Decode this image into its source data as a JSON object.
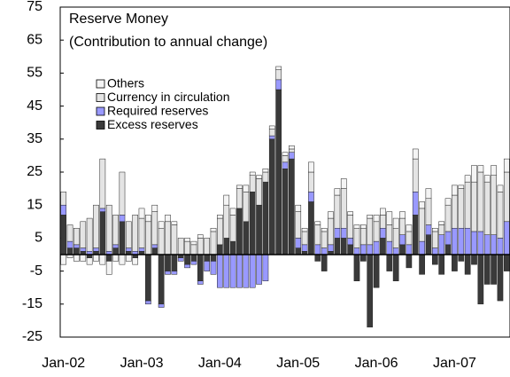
{
  "chart_data": {
    "type": "bar",
    "stacked": true,
    "title": "Reserve Money",
    "subtitle": "(Contribution to annual change)",
    "categories": [
      "Jan-02",
      null,
      null,
      null,
      null,
      null,
      null,
      null,
      null,
      null,
      null,
      null,
      "Jan-03",
      null,
      null,
      null,
      null,
      null,
      null,
      null,
      null,
      null,
      null,
      null,
      "Jan-04",
      null,
      null,
      null,
      null,
      null,
      null,
      null,
      null,
      null,
      null,
      null,
      "Jan-05",
      null,
      null,
      null,
      null,
      null,
      null,
      null,
      null,
      null,
      null,
      null,
      "Jan-06",
      null,
      null,
      null,
      null,
      null,
      null,
      null,
      null,
      null,
      null,
      null,
      "Jan-07",
      null,
      null,
      null,
      null,
      null,
      null,
      null,
      null
    ],
    "series": [
      {
        "name": "Excess reserves",
        "color": "#3a3a3a",
        "values": [
          12,
          2,
          2,
          1,
          -1,
          1,
          13,
          -2,
          2,
          10,
          1,
          -1,
          1,
          -14,
          2,
          -15,
          -5,
          -5,
          -1,
          -3,
          -2,
          -8,
          -2,
          -2,
          3,
          5,
          4,
          14,
          10,
          19,
          15,
          22,
          35,
          50,
          26,
          29,
          2,
          1,
          16,
          -2,
          -5,
          1,
          5,
          5,
          3,
          -8,
          -2,
          -22,
          -10,
          5,
          -5,
          -8,
          3,
          -4,
          12,
          -6,
          6,
          -3,
          -6,
          3,
          -5,
          -2,
          -6,
          -3,
          -15,
          -9,
          -9,
          -14,
          -5
        ]
      },
      {
        "name": "Required reserves",
        "color": "#9999ff",
        "values": [
          3,
          2,
          1,
          1,
          1,
          1,
          1,
          1,
          1,
          2,
          1,
          1,
          1,
          -1,
          1,
          -1,
          -1,
          -1,
          -1,
          -1,
          -1,
          -1,
          -3,
          -4,
          -10,
          -10,
          -10,
          -10,
          -10,
          -10,
          -9,
          -8,
          1,
          3,
          2,
          2,
          3,
          2,
          3,
          3,
          2,
          2,
          3,
          3,
          2,
          2,
          3,
          3,
          4,
          3,
          4,
          2,
          3,
          3,
          7,
          4,
          3,
          2,
          6,
          4,
          8,
          8,
          8,
          7,
          7,
          6,
          6,
          5,
          10
        ]
      },
      {
        "name": "Currency in circulation",
        "color": "#e4e4e4",
        "values": [
          4,
          5,
          5,
          8,
          10,
          13,
          15,
          14,
          9,
          13,
          8,
          11,
          9,
          10,
          10,
          8,
          10,
          9,
          5,
          4,
          3,
          5,
          5,
          7,
          8,
          10,
          8,
          6,
          9,
          5,
          8,
          3,
          2,
          3,
          2,
          1,
          8,
          4,
          6,
          6,
          5,
          8,
          10,
          12,
          7,
          6,
          5,
          8,
          6,
          4,
          5,
          6,
          5,
          4,
          10,
          10,
          8,
          5,
          3,
          8,
          10,
          12,
          14,
          15,
          18,
          16,
          18,
          14,
          15
        ]
      },
      {
        "name": "Others",
        "color": "#f4f4f4",
        "values": [
          -3,
          -1,
          -2,
          -2,
          -2,
          -2,
          -3,
          -4,
          -2,
          -3,
          -2,
          -2,
          3,
          2,
          2,
          2,
          2,
          1,
          0,
          1,
          1,
          1,
          0,
          1,
          1,
          3,
          2,
          1,
          2,
          1,
          1,
          1,
          1,
          1,
          1,
          1,
          2,
          1,
          3,
          1,
          1,
          2,
          2,
          3,
          1,
          1,
          1,
          1,
          2,
          2,
          4,
          3,
          2,
          2,
          3,
          2,
          3,
          1,
          1,
          2,
          3,
          1,
          2,
          5,
          2,
          2,
          3,
          2,
          4
        ]
      }
    ],
    "ylim": [
      -25,
      75
    ],
    "yticks": [
      -25,
      -15,
      -5,
      5,
      15,
      25,
      35,
      45,
      55,
      65,
      75
    ],
    "grid": false
  }
}
